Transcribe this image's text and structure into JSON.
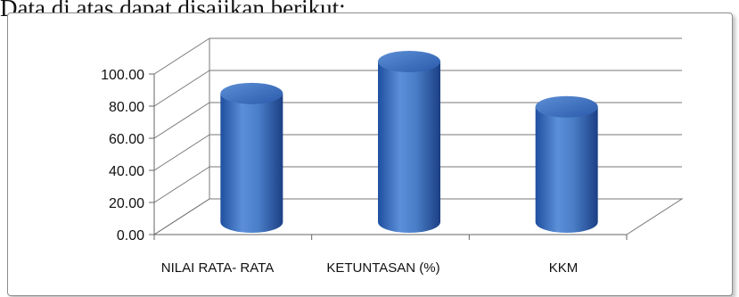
{
  "caption": "Data di atas dapat disajikan berikut:",
  "chart_data": {
    "type": "bar",
    "style": "3d-cylinder",
    "categories": [
      "NILAI RATA- RATA",
      "KETUNTASAN (%)",
      "KKM"
    ],
    "values": [
      80.1,
      100.0,
      71.8
    ],
    "ylim": [
      0,
      100
    ],
    "yticks": [
      "0.00",
      "20.00",
      "40.00",
      "60.00",
      "80.00",
      "100.00"
    ],
    "grid": true,
    "bar_color": "#4a7fc8"
  }
}
